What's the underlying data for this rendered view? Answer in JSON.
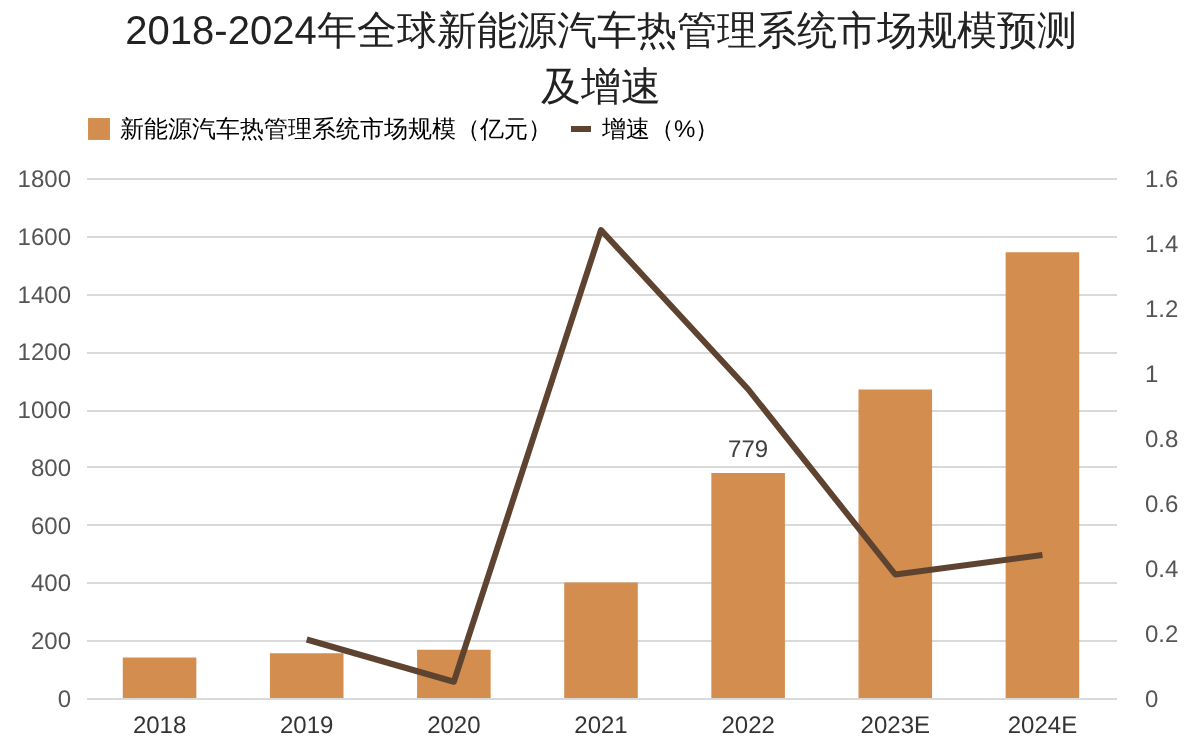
{
  "chart_data": {
    "type": "bar",
    "title": "2018-2024年全球新能源汽车热管理系统市场规模预测及增速",
    "categories": [
      "2018",
      "2019",
      "2020",
      "2021",
      "2022",
      "2023E",
      "2024E"
    ],
    "series": [
      {
        "name": "新能源汽车热管理系统市场规模（亿元）",
        "color": "#d38d4f",
        "values": [
          140,
          155,
          167,
          400,
          779,
          1068,
          1543
        ],
        "value_labels": [
          null,
          null,
          null,
          null,
          "779",
          null,
          null
        ]
      },
      {
        "name": "增速（%）",
        "type": "line",
        "axis": "y2",
        "color": "#5e4430",
        "values": [
          null,
          0.18,
          0.05,
          1.44,
          0.95,
          0.38,
          0.44
        ]
      }
    ],
    "ylim": [
      0,
      1800
    ],
    "yticks": [
      0,
      200,
      400,
      600,
      800,
      1000,
      1200,
      1400,
      1600,
      1800
    ],
    "y2lim": [
      0,
      1.6
    ],
    "y2ticks": [
      0,
      0.2,
      0.4,
      0.6,
      0.8,
      1,
      1.2,
      1.4,
      1.6
    ],
    "grid": "y",
    "legend": "top",
    "marker": "none",
    "line_style": "solid"
  }
}
